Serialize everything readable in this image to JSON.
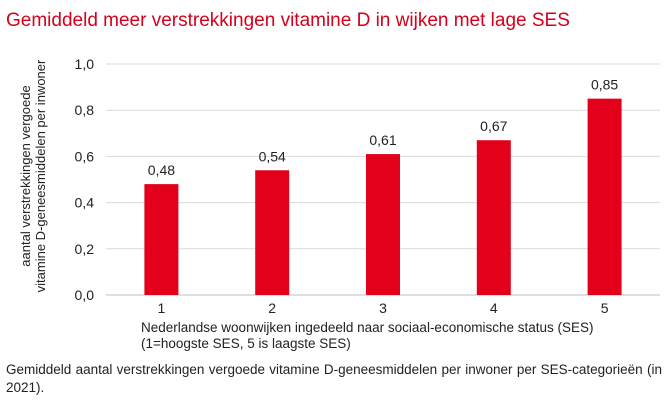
{
  "chart_data": {
    "type": "bar",
    "title": "Gemiddeld meer verstrekkingen vitamine D in wijken met lage SES",
    "categories": [
      "1",
      "2",
      "3",
      "4",
      "5"
    ],
    "values": [
      0.48,
      0.54,
      0.61,
      0.67,
      0.85
    ],
    "value_labels": [
      "0,48",
      "0,54",
      "0,61",
      "0,67",
      "0,85"
    ],
    "yticks": [
      0.0,
      0.2,
      0.4,
      0.6,
      0.8,
      1.0
    ],
    "ytick_labels": [
      "0,0",
      "0,2",
      "0,4",
      "0,6",
      "0,8",
      "1,0"
    ],
    "ylim": [
      0,
      1.0
    ],
    "ylabel_lines": [
      "aantal verstrekkingen vergoede",
      "vitamine D-geneesmiddelen per inwoner"
    ],
    "xlabel_lines": [
      "Nederlandse woonwijken ingedeeld naar sociaal-economische status (SES)",
      "(1=hoogste SES, 5 is laagste SES)"
    ],
    "grid": true,
    "bar_color": "#e2001a",
    "grid_color": "#d9d9d9"
  },
  "caption": "Gemiddeld aantal verstrekkingen vergoede vitamine D-geneesmiddelen per inwoner per SES-categorieën (in 2021)."
}
